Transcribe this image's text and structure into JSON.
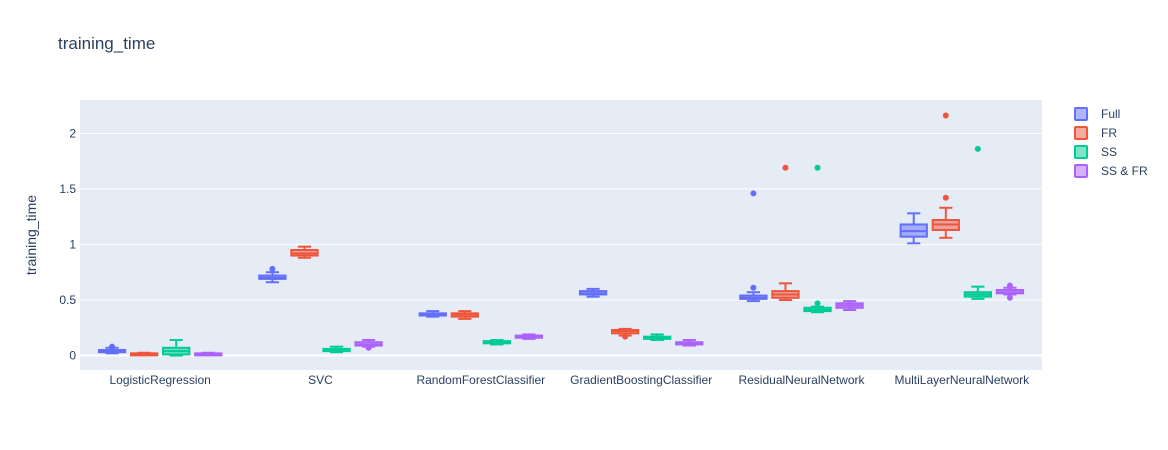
{
  "chart_data": {
    "type": "box",
    "title": "training_time",
    "xlabel": "",
    "ylabel": "training_time",
    "ylim": [
      -0.13,
      2.3
    ],
    "yticks": [
      0,
      0.5,
      1,
      1.5,
      2
    ],
    "ytick_labels": [
      "0",
      "0.5",
      "1",
      "1.5",
      "2"
    ],
    "grid": true,
    "legend_position": "top-right",
    "categories": [
      "LogisticRegression",
      "SVC",
      "RandomForestClassifier",
      "GradientBoostingClassifier",
      "ResidualNeuralNetwork",
      "MultiLayerNeuralNetwork"
    ],
    "series": [
      {
        "name": "Full",
        "color": "#636efa",
        "boxes": [
          {
            "lower": 0.02,
            "q1": 0.03,
            "median": 0.04,
            "q3": 0.05,
            "upper": 0.07,
            "outliers": [
              0.08
            ]
          },
          {
            "lower": 0.66,
            "q1": 0.69,
            "median": 0.7,
            "q3": 0.72,
            "upper": 0.75,
            "outliers": [
              0.78
            ]
          },
          {
            "lower": 0.35,
            "q1": 0.36,
            "median": 0.37,
            "q3": 0.38,
            "upper": 0.4,
            "outliers": []
          },
          {
            "lower": 0.53,
            "q1": 0.55,
            "median": 0.56,
            "q3": 0.58,
            "upper": 0.6,
            "outliers": []
          },
          {
            "lower": 0.49,
            "q1": 0.51,
            "median": 0.52,
            "q3": 0.54,
            "upper": 0.57,
            "outliers": [
              0.61,
              1.46
            ]
          },
          {
            "lower": 1.01,
            "q1": 1.07,
            "median": 1.12,
            "q3": 1.18,
            "upper": 1.28,
            "outliers": []
          }
        ]
      },
      {
        "name": "FR",
        "color": "#ef553b",
        "boxes": [
          {
            "lower": 0.005,
            "q1": 0.01,
            "median": 0.015,
            "q3": 0.02,
            "upper": 0.025,
            "outliers": []
          },
          {
            "lower": 0.88,
            "q1": 0.9,
            "median": 0.92,
            "q3": 0.95,
            "upper": 0.98,
            "outliers": []
          },
          {
            "lower": 0.33,
            "q1": 0.35,
            "median": 0.37,
            "q3": 0.38,
            "upper": 0.4,
            "outliers": []
          },
          {
            "lower": 0.18,
            "q1": 0.2,
            "median": 0.22,
            "q3": 0.23,
            "upper": 0.24,
            "outliers": [
              0.17
            ]
          },
          {
            "lower": 0.5,
            "q1": 0.52,
            "median": 0.55,
            "q3": 0.58,
            "upper": 0.65,
            "outliers": [
              1.69
            ]
          },
          {
            "lower": 1.06,
            "q1": 1.13,
            "median": 1.18,
            "q3": 1.22,
            "upper": 1.33,
            "outliers": [
              1.42,
              2.16
            ]
          }
        ]
      },
      {
        "name": "SS",
        "color": "#00cc96",
        "boxes": [
          {
            "lower": 0.0,
            "q1": 0.01,
            "median": 0.04,
            "q3": 0.07,
            "upper": 0.14,
            "outliers": []
          },
          {
            "lower": 0.03,
            "q1": 0.04,
            "median": 0.05,
            "q3": 0.06,
            "upper": 0.08,
            "outliers": []
          },
          {
            "lower": 0.1,
            "q1": 0.11,
            "median": 0.12,
            "q3": 0.13,
            "upper": 0.14,
            "outliers": []
          },
          {
            "lower": 0.14,
            "q1": 0.15,
            "median": 0.16,
            "q3": 0.17,
            "upper": 0.19,
            "outliers": []
          },
          {
            "lower": 0.39,
            "q1": 0.4,
            "median": 0.41,
            "q3": 0.43,
            "upper": 0.44,
            "outliers": [
              0.47,
              1.69
            ]
          },
          {
            "lower": 0.51,
            "q1": 0.53,
            "median": 0.55,
            "q3": 0.57,
            "upper": 0.62,
            "outliers": [
              1.86
            ]
          }
        ]
      },
      {
        "name": "SS & FR",
        "color": "#ab63fa",
        "boxes": [
          {
            "lower": 0.005,
            "q1": 0.01,
            "median": 0.015,
            "q3": 0.02,
            "upper": 0.025,
            "outliers": []
          },
          {
            "lower": 0.08,
            "q1": 0.09,
            "median": 0.1,
            "q3": 0.12,
            "upper": 0.14,
            "outliers": [
              0.07
            ]
          },
          {
            "lower": 0.15,
            "q1": 0.16,
            "median": 0.17,
            "q3": 0.18,
            "upper": 0.19,
            "outliers": []
          },
          {
            "lower": 0.09,
            "q1": 0.1,
            "median": 0.11,
            "q3": 0.12,
            "upper": 0.14,
            "outliers": []
          },
          {
            "lower": 0.41,
            "q1": 0.43,
            "median": 0.45,
            "q3": 0.47,
            "upper": 0.49,
            "outliers": []
          },
          {
            "lower": 0.55,
            "q1": 0.56,
            "median": 0.57,
            "q3": 0.59,
            "upper": 0.61,
            "outliers": [
              0.52,
              0.63
            ]
          }
        ]
      }
    ]
  }
}
